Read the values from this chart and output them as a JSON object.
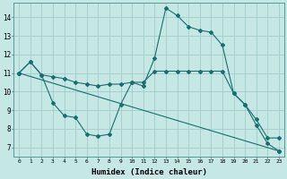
{
  "xlabel": "Humidex (Indice chaleur)",
  "bg_color": "#c5e8e5",
  "grid_color": "#a0ccca",
  "line_color": "#1a6e6e",
  "xlim": [
    -0.5,
    23.5
  ],
  "ylim": [
    6.5,
    14.8
  ],
  "yticks": [
    7,
    8,
    9,
    10,
    11,
    12,
    13,
    14
  ],
  "xticks": [
    0,
    1,
    2,
    3,
    4,
    5,
    6,
    7,
    8,
    9,
    10,
    11,
    12,
    13,
    14,
    15,
    16,
    17,
    18,
    19,
    20,
    21,
    22,
    23
  ],
  "series": [
    {
      "x": [
        0,
        1,
        2,
        3,
        4,
        5,
        6,
        7,
        8,
        9,
        10,
        11,
        12,
        13,
        14,
        15,
        16,
        17,
        18,
        19,
        20,
        21,
        22,
        23
      ],
      "y": [
        11,
        11.6,
        10.9,
        9.4,
        8.7,
        8.6,
        7.7,
        7.6,
        7.7,
        9.3,
        10.5,
        10.3,
        11.8,
        14.5,
        14.1,
        13.5,
        13.3,
        13.2,
        12.5,
        9.9,
        9.3,
        8.2,
        7.2,
        6.8
      ]
    },
    {
      "x": [
        0,
        1,
        2,
        3,
        4,
        5,
        6,
        7,
        8,
        9,
        10,
        11,
        12,
        13,
        14,
        15,
        16,
        17,
        18,
        19,
        20,
        21,
        22,
        23
      ],
      "y": [
        11,
        11.6,
        10.9,
        10.8,
        10.7,
        10.5,
        10.4,
        10.3,
        10.4,
        10.4,
        10.5,
        10.5,
        11.1,
        11.1,
        11.1,
        11.1,
        11.1,
        11.1,
        11.1,
        9.9,
        9.3,
        8.5,
        7.5,
        7.5
      ]
    },
    {
      "x": [
        0,
        23
      ],
      "y": [
        11,
        6.8
      ]
    }
  ]
}
